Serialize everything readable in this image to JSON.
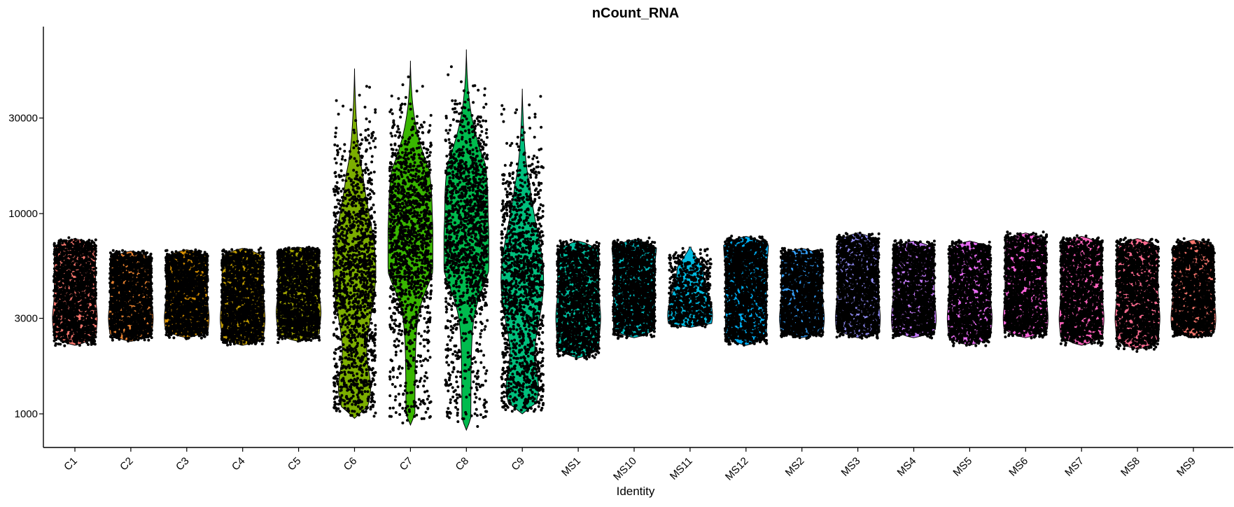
{
  "chart_data": {
    "type": "violin",
    "title": "nCount_RNA",
    "xlabel": "Identity",
    "ylabel": "",
    "y_scale": "log",
    "yticks": [
      1000,
      3000,
      10000,
      30000
    ],
    "ylim": [
      700,
      80000
    ],
    "grid": false,
    "legend": "none",
    "categories": [
      "C1",
      "C2",
      "C3",
      "C4",
      "C5",
      "C6",
      "C7",
      "C8",
      "C9",
      "MS1",
      "MS10",
      "MS11",
      "MS12",
      "MS2",
      "MS3",
      "MS4",
      "MS5",
      "MS6",
      "MS7",
      "MS8",
      "MS9"
    ],
    "series": [
      {
        "category": "C1",
        "color": "#F8766D",
        "min": 2200,
        "max": 7500,
        "mode": 3000,
        "density": "flat"
      },
      {
        "category": "C2",
        "color": "#EA8331",
        "min": 2300,
        "max": 6500,
        "mode": 3000,
        "density": "flat"
      },
      {
        "category": "C3",
        "color": "#D89000",
        "min": 2400,
        "max": 6600,
        "mode": 3000,
        "density": "flat"
      },
      {
        "category": "C4",
        "color": "#C09B00",
        "min": 2200,
        "max": 6700,
        "mode": 3000,
        "density": "flat"
      },
      {
        "category": "C5",
        "color": "#A3A500",
        "min": 2300,
        "max": 6800,
        "mode": 3200,
        "density": "flat"
      },
      {
        "category": "C6",
        "color": "#7CAE00",
        "min": 950,
        "max": 53000,
        "mode": 1300,
        "density": "long-tail"
      },
      {
        "category": "C7",
        "color": "#39B600",
        "min": 880,
        "max": 58000,
        "mode": 5500,
        "density": "long-tail"
      },
      {
        "category": "C8",
        "color": "#00BB4E",
        "min": 830,
        "max": 66000,
        "mode": 5500,
        "density": "long-tail"
      },
      {
        "category": "C9",
        "color": "#00BF7D",
        "min": 1000,
        "max": 42000,
        "mode": 1300,
        "density": "long-tail"
      },
      {
        "category": "MS1",
        "color": "#00C1A3",
        "min": 1900,
        "max": 7300,
        "mode": 3000,
        "density": "flat"
      },
      {
        "category": "MS10",
        "color": "#00BFC4",
        "min": 2400,
        "max": 7400,
        "mode": 7000,
        "density": "flat"
      },
      {
        "category": "MS11",
        "color": "#00BAE0",
        "min": 2700,
        "max": 6800,
        "mode": 3100,
        "density": "compact"
      },
      {
        "category": "MS12",
        "color": "#00B0F6",
        "min": 2200,
        "max": 7700,
        "mode": 7000,
        "density": "flat"
      },
      {
        "category": "MS2",
        "color": "#35A2FF",
        "min": 2400,
        "max": 6700,
        "mode": 3000,
        "density": "flat"
      },
      {
        "category": "MS3",
        "color": "#9590FF",
        "min": 2400,
        "max": 8000,
        "mode": 3000,
        "density": "flat"
      },
      {
        "category": "MS4",
        "color": "#C77CFF",
        "min": 2400,
        "max": 7300,
        "mode": 3000,
        "density": "flat"
      },
      {
        "category": "MS5",
        "color": "#E76BF3",
        "min": 2200,
        "max": 7300,
        "mode": 3000,
        "density": "flat"
      },
      {
        "category": "MS6",
        "color": "#FA62DB",
        "min": 2400,
        "max": 8000,
        "mode": 3000,
        "density": "flat"
      },
      {
        "category": "MS7",
        "color": "#FF62BC",
        "min": 2200,
        "max": 7700,
        "mode": 3000,
        "density": "flat"
      },
      {
        "category": "MS8",
        "color": "#FF6C91",
        "min": 2100,
        "max": 7500,
        "mode": 3000,
        "density": "flat"
      },
      {
        "category": "MS9",
        "color": "#F8766D",
        "min": 2400,
        "max": 7400,
        "mode": 3000,
        "density": "flat"
      }
    ]
  }
}
